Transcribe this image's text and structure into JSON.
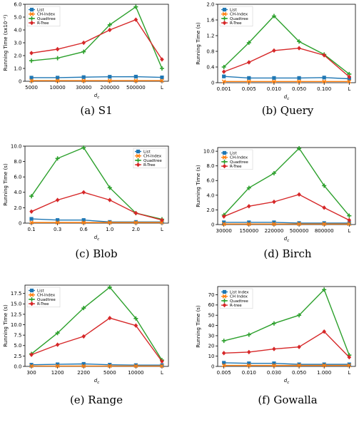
{
  "chart_data": [
    {
      "id": "a",
      "type": "line",
      "caption": "(a) S1",
      "ylabel": "Running Time (sx10⁻²)",
      "xlabel": "d_c",
      "categories": [
        "5000",
        "10000",
        "30000",
        "200000",
        "500000",
        "L"
      ],
      "ylim": [
        0,
        6.0
      ],
      "yticks": [
        0,
        1,
        2,
        3,
        4,
        5,
        6
      ],
      "yticklabels": [
        "0",
        "1.0",
        "2.0",
        "3.0",
        "4.0",
        "5.0",
        "6.0"
      ],
      "legend_loc": "upper-left",
      "grid": false,
      "series": [
        {
          "name": "List",
          "color": "#1f77b4",
          "marker": "square",
          "values": [
            0.28,
            0.28,
            0.32,
            0.35,
            0.36,
            0.3
          ]
        },
        {
          "name": "CH-Index",
          "color": "#ff7f0e",
          "marker": "x",
          "values": [
            0.05,
            0.05,
            0.05,
            0.05,
            0.05,
            0.05
          ]
        },
        {
          "name": "Quadtree",
          "color": "#2ca02c",
          "marker": "plus",
          "values": [
            1.6,
            1.8,
            2.3,
            4.4,
            5.8,
            1.0
          ]
        },
        {
          "name": "R-Tree",
          "color": "#d62728",
          "marker": "diamond",
          "values": [
            2.2,
            2.5,
            3.0,
            4.0,
            4.8,
            1.7
          ]
        }
      ]
    },
    {
      "id": "b",
      "type": "line",
      "caption": "(b) Query",
      "ylabel": "Running Time (s)",
      "xlabel": "d_c",
      "categories": [
        "0.001",
        "0.005",
        "0.010",
        "0.050",
        "0.100",
        "L"
      ],
      "ylim": [
        0,
        2.0
      ],
      "yticks": [
        0,
        0.4,
        0.8,
        1.2,
        1.6,
        2.0
      ],
      "yticklabels": [
        "0",
        "0.4",
        "0.8",
        "1.2",
        "1.6",
        "2.0"
      ],
      "legend_loc": "upper-left",
      "grid": false,
      "series": [
        {
          "name": "List",
          "color": "#1f77b4",
          "marker": "square",
          "values": [
            0.16,
            0.12,
            0.12,
            0.12,
            0.13,
            0.1
          ]
        },
        {
          "name": "CH-Index",
          "color": "#ff7f0e",
          "marker": "x",
          "values": [
            0.03,
            0.03,
            0.03,
            0.03,
            0.03,
            0.03
          ]
        },
        {
          "name": "Quadtree",
          "color": "#2ca02c",
          "marker": "plus",
          "values": [
            0.4,
            1.02,
            1.7,
            1.05,
            0.72,
            0.22
          ]
        },
        {
          "name": "R-Tree",
          "color": "#d62728",
          "marker": "diamond",
          "values": [
            0.28,
            0.52,
            0.82,
            0.88,
            0.7,
            0.15
          ]
        }
      ]
    },
    {
      "id": "c",
      "type": "line",
      "caption": "(c) Blob",
      "ylabel": "Running Time (s)",
      "xlabel": "d_c",
      "categories": [
        "0.1",
        "0.3",
        "0.6",
        "1.0",
        "2.0",
        "L"
      ],
      "ylim": [
        0,
        10.0
      ],
      "yticks": [
        0,
        2,
        4,
        6,
        8,
        10
      ],
      "yticklabels": [
        "0",
        "2.0",
        "4.0",
        "6.0",
        "8.0",
        "10.0"
      ],
      "legend_loc": "upper-right",
      "grid": false,
      "series": [
        {
          "name": "List",
          "color": "#1f77b4",
          "marker": "square",
          "values": [
            0.55,
            0.4,
            0.4,
            0.15,
            0.15,
            0.15
          ]
        },
        {
          "name": "CH-Index",
          "color": "#ff7f0e",
          "marker": "x",
          "values": [
            0.08,
            0.08,
            0.08,
            0.08,
            0.08,
            0.08
          ]
        },
        {
          "name": "Quadtree",
          "color": "#2ca02c",
          "marker": "plus",
          "values": [
            3.5,
            8.4,
            9.8,
            4.6,
            1.3,
            0.5
          ]
        },
        {
          "name": "R-Tree",
          "color": "#d62728",
          "marker": "diamond",
          "values": [
            1.5,
            3.0,
            4.0,
            3.0,
            1.3,
            0.4
          ]
        }
      ]
    },
    {
      "id": "d",
      "type": "line",
      "caption": "(d) Birch",
      "ylabel": "Running Time (s)",
      "xlabel": "d_c",
      "categories": [
        "30000",
        "150000",
        "220000",
        "500000",
        "800000",
        "L"
      ],
      "ylim": [
        0,
        10.5
      ],
      "yticks": [
        0,
        2,
        4,
        6,
        8,
        10
      ],
      "yticklabels": [
        "0",
        "2.0",
        "4.0",
        "6.0",
        "8.0",
        "10.0"
      ],
      "legend_loc": "upper-left",
      "grid": false,
      "series": [
        {
          "name": "List",
          "color": "#1f77b4",
          "marker": "square",
          "values": [
            0.3,
            0.3,
            0.3,
            0.2,
            0.2,
            0.2
          ]
        },
        {
          "name": "CH-Index",
          "color": "#ff7f0e",
          "marker": "x",
          "values": [
            0.08,
            0.08,
            0.08,
            0.08,
            0.08,
            0.08
          ]
        },
        {
          "name": "Quadtree",
          "color": "#2ca02c",
          "marker": "plus",
          "values": [
            1.3,
            5.0,
            7.0,
            10.4,
            5.3,
            1.2
          ]
        },
        {
          "name": "R-Tree",
          "color": "#d62728",
          "marker": "diamond",
          "values": [
            1.1,
            2.5,
            3.1,
            4.1,
            2.3,
            0.6
          ]
        }
      ]
    },
    {
      "id": "e",
      "type": "line",
      "caption": "(e) Range",
      "ylabel": "Running Time (s)",
      "xlabel": "d_c",
      "categories": [
        "300",
        "1200",
        "2200",
        "5000",
        "10000",
        "L"
      ],
      "ylim": [
        0,
        19.5
      ],
      "yticks": [
        0,
        2.5,
        5,
        7.5,
        10,
        12.5,
        15,
        17.5
      ],
      "yticklabels": [
        "0.0",
        "2.5",
        "5.0",
        "7.5",
        "10.0",
        "12.5",
        "15.0",
        "17.5"
      ],
      "legend_loc": "upper-left",
      "grid": false,
      "series": [
        {
          "name": "List",
          "color": "#1f77b4",
          "marker": "square",
          "values": [
            0.4,
            0.5,
            0.6,
            0.4,
            0.3,
            0.3
          ]
        },
        {
          "name": "CH-Index",
          "color": "#ff7f0e",
          "marker": "x",
          "values": [
            0.1,
            0.1,
            0.1,
            0.1,
            0.1,
            0.1
          ]
        },
        {
          "name": "Quadtree",
          "color": "#2ca02c",
          "marker": "plus",
          "values": [
            3.0,
            8.0,
            14.0,
            19.0,
            11.5,
            1.5
          ]
        },
        {
          "name": "R-Tree",
          "color": "#d62728",
          "marker": "diamond",
          "values": [
            2.8,
            5.2,
            7.2,
            11.6,
            9.8,
            1.2
          ]
        }
      ]
    },
    {
      "id": "f",
      "type": "line",
      "caption": "(f) Gowalla",
      "ylabel": "Running Time (s)",
      "xlabel": "d_c",
      "categories": [
        "0.005",
        "0.010",
        "0.030",
        "0.050",
        "1.000",
        "L"
      ],
      "ylim": [
        0,
        78
      ],
      "yticks": [
        0,
        10,
        20,
        30,
        40,
        50,
        60,
        70
      ],
      "yticklabels": [
        "0",
        "10",
        "20",
        "30",
        "40",
        "50",
        "60",
        "70"
      ],
      "legend_loc": "upper-left",
      "grid": false,
      "series": [
        {
          "name": "List Index",
          "color": "#1f77b4",
          "marker": "square",
          "values": [
            3.5,
            3.0,
            3.0,
            2.0,
            2.0,
            2.0
          ]
        },
        {
          "name": "CH Index",
          "color": "#ff7f0e",
          "marker": "x",
          "values": [
            1.0,
            1.0,
            1.0,
            1.0,
            1.0,
            1.0
          ]
        },
        {
          "name": "Quadtree",
          "color": "#2ca02c",
          "marker": "plus",
          "values": [
            25,
            31,
            42,
            50,
            75,
            11
          ]
        },
        {
          "name": "R-tree",
          "color": "#d62728",
          "marker": "diamond",
          "values": [
            13,
            14,
            17,
            19,
            34,
            9
          ]
        }
      ]
    }
  ]
}
